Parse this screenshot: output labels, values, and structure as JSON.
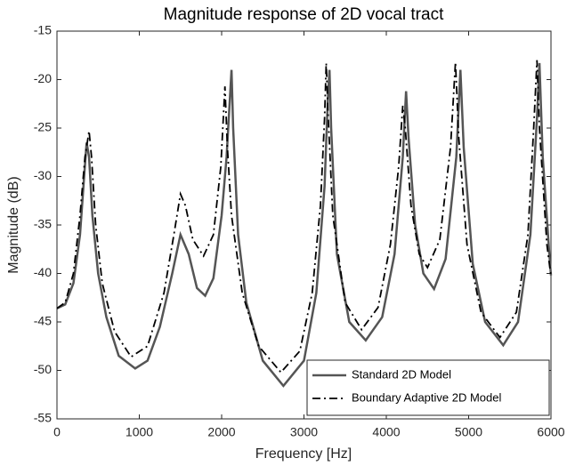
{
  "chart_data": {
    "type": "line",
    "title": "Magnitude response of 2D vocal tract",
    "x_label": "Frequency [Hz]",
    "y_label": "Magnitude (dB)",
    "xlim": [
      0,
      6000
    ],
    "xticks": [
      0,
      1000,
      2000,
      3000,
      4000,
      5000,
      6000
    ],
    "ylim": [
      -55,
      -15
    ],
    "yticks": [
      -55,
      -50,
      -45,
      -40,
      -35,
      -30,
      -25,
      -20,
      -15
    ],
    "grid": false,
    "legend": "lower right",
    "series": [
      {
        "name": "Standard 2D Model",
        "color": "#555555",
        "dash": "solid",
        "x": [
          0,
          100,
          200,
          280,
          330,
          360,
          390,
          430,
          500,
          600,
          750,
          950,
          1100,
          1250,
          1400,
          1500,
          1600,
          1700,
          1800,
          1900,
          2000,
          2060,
          2100,
          2120,
          2140,
          2200,
          2300,
          2500,
          2750,
          3000,
          3150,
          3250,
          3290,
          3310,
          3330,
          3400,
          3550,
          3750,
          3950,
          4100,
          4200,
          4240,
          4270,
          4350,
          4450,
          4580,
          4720,
          4850,
          4900,
          4940,
          5050,
          5200,
          5420,
          5600,
          5750,
          5830,
          5860,
          5900,
          5980,
          6000
        ],
        "values": [
          -43.6,
          -43.2,
          -41,
          -36,
          -30,
          -26.5,
          -28,
          -34,
          -40,
          -44.5,
          -48.5,
          -49.8,
          -49,
          -45.5,
          -40,
          -36,
          -38,
          -41.5,
          -42.3,
          -40.5,
          -34,
          -28,
          -22,
          -19,
          -25,
          -36,
          -43,
          -49,
          -51.6,
          -49,
          -42,
          -31,
          -22,
          -19,
          -25,
          -38,
          -45,
          -46.9,
          -44.5,
          -38,
          -28,
          -21.2,
          -26,
          -35,
          -40,
          -41.6,
          -38.5,
          -28,
          -19,
          -27,
          -39,
          -45,
          -47.4,
          -45,
          -36,
          -24,
          -18.3,
          -28,
          -38,
          -40.2
        ]
      },
      {
        "name": "Boundary Adaptive 2D Model",
        "color": "#000000",
        "dash": "dashdot",
        "x": [
          0,
          100,
          200,
          280,
          340,
          390,
          420,
          470,
          550,
          700,
          900,
          1100,
          1300,
          1420,
          1500,
          1560,
          1650,
          1780,
          1900,
          1990,
          2040,
          2070,
          2120,
          2250,
          2450,
          2720,
          2950,
          3100,
          3200,
          3250,
          3270,
          3295,
          3350,
          3500,
          3700,
          3900,
          4050,
          4150,
          4200,
          4230,
          4300,
          4400,
          4500,
          4650,
          4780,
          4840,
          4880,
          4980,
          5150,
          5380,
          5580,
          5720,
          5790,
          5830,
          5860,
          5950,
          6000
        ],
        "values": [
          -43.6,
          -43,
          -40,
          -34,
          -28,
          -25.3,
          -28,
          -35,
          -41,
          -46,
          -48.6,
          -47.5,
          -42,
          -36,
          -31.8,
          -33,
          -36.5,
          -38.2,
          -36,
          -29,
          -20.7,
          -27,
          -34,
          -42,
          -47.5,
          -50.2,
          -48,
          -42,
          -33,
          -24,
          -18.3,
          -24,
          -34,
          -43,
          -45.8,
          -43.5,
          -37,
          -29,
          -22.7,
          -25,
          -33,
          -38,
          -39.4,
          -36.5,
          -27,
          -18.2,
          -26,
          -37,
          -44,
          -46.6,
          -44,
          -36,
          -25,
          -18,
          -25,
          -37,
          -40.3
        ]
      }
    ]
  }
}
